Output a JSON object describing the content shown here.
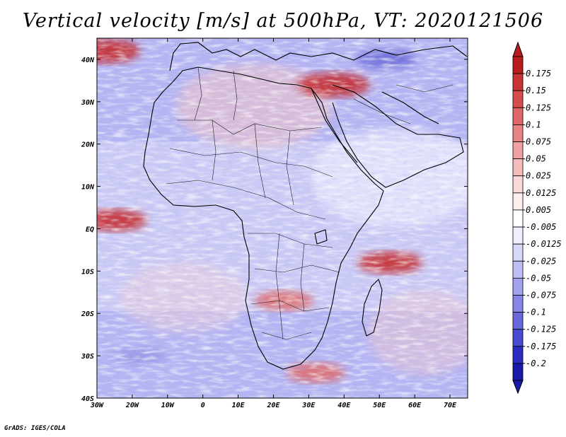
{
  "title": "Vertical velocity [m/s] at 500hPa, VT: 2020121506",
  "footer": "GrADS: IGES/COLA",
  "map": {
    "lon_range": [
      -30,
      75
    ],
    "lat_range": [
      -40,
      45
    ],
    "x_ticks": [
      {
        "lon": -30,
        "label": "30W"
      },
      {
        "lon": -20,
        "label": "20W"
      },
      {
        "lon": -10,
        "label": "10W"
      },
      {
        "lon": 0,
        "label": "0"
      },
      {
        "lon": 10,
        "label": "10E"
      },
      {
        "lon": 20,
        "label": "20E"
      },
      {
        "lon": 30,
        "label": "30E"
      },
      {
        "lon": 40,
        "label": "40E"
      },
      {
        "lon": 50,
        "label": "50E"
      },
      {
        "lon": 60,
        "label": "60E"
      },
      {
        "lon": 70,
        "label": "70E"
      }
    ],
    "y_ticks": [
      {
        "lat": 40,
        "label": "40N"
      },
      {
        "lat": 30,
        "label": "30N"
      },
      {
        "lat": 20,
        "label": "20N"
      },
      {
        "lat": 10,
        "label": "10N"
      },
      {
        "lat": 0,
        "label": "EQ"
      },
      {
        "lat": -10,
        "label": "10S"
      },
      {
        "lat": -20,
        "label": "20S"
      },
      {
        "lat": -30,
        "label": "30S"
      },
      {
        "lat": -40,
        "label": "40S"
      }
    ]
  },
  "colorbar": {
    "labels": [
      "0.175",
      "0.15",
      "0.125",
      "0.1",
      "0.075",
      "0.05",
      "0.025",
      "0.0125",
      "0.005",
      "-0.005",
      "-0.0125",
      "-0.025",
      "-0.05",
      "-0.075",
      "-0.1",
      "-0.125",
      "-0.175",
      "-0.2"
    ],
    "colors": [
      "#b81c1c",
      "#c83434",
      "#d44c4c",
      "#de6868",
      "#e78383",
      "#efa0a0",
      "#f5bcbc",
      "#fad8d8",
      "#fdeeee",
      "#ffffff",
      "#eeeefe",
      "#d8d8fa",
      "#bebef4",
      "#a2a2ee",
      "#8686e6",
      "#6868dc",
      "#4a4ad0",
      "#2c2cc0",
      "#1a1aa8"
    ]
  },
  "features": {
    "updraft-itcz-atlantic": {
      "lon": -25,
      "lat": 2,
      "strength": 0.12
    },
    "updraft-east-med": {
      "lon": 37,
      "lat": 34,
      "strength": 0.15
    },
    "updraft-north-atlantic": {
      "lon": -28,
      "lat": 42,
      "strength": 0.15
    },
    "updraft-indian-ocean": {
      "lon": 53,
      "lat": -8,
      "strength": 0.12
    },
    "updraft-mozambique": {
      "lon": 23,
      "lat": -17,
      "strength": 0.1
    },
    "updraft-south-africa": {
      "lon": 32,
      "lat": -34,
      "strength": 0.1
    },
    "downdraft-south-atlantic": {
      "lon": -18,
      "lat": -30,
      "strength": -0.08
    },
    "downdraft-persia": {
      "lon": 52,
      "lat": 40,
      "strength": -0.1
    }
  }
}
